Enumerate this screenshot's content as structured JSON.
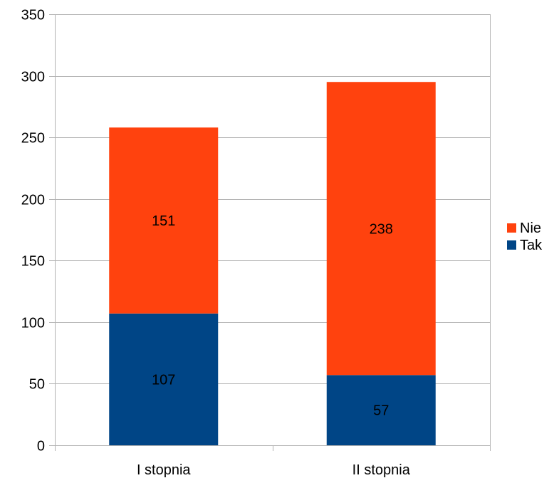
{
  "chart_data": {
    "type": "bar",
    "stacked": true,
    "categories": [
      "I stopnia",
      "II stopnia"
    ],
    "series": [
      {
        "name": "Tak",
        "values": [
          107,
          57
        ],
        "color": "#004586"
      },
      {
        "name": "Nie",
        "values": [
          151,
          238
        ],
        "color": "#ff420e"
      }
    ],
    "yticks": [
      "0",
      "50",
      "100",
      "150",
      "200",
      "250",
      "300",
      "350"
    ],
    "ylim": [
      0,
      350
    ],
    "grid": true,
    "legend_position": "right",
    "data_labels": true
  }
}
